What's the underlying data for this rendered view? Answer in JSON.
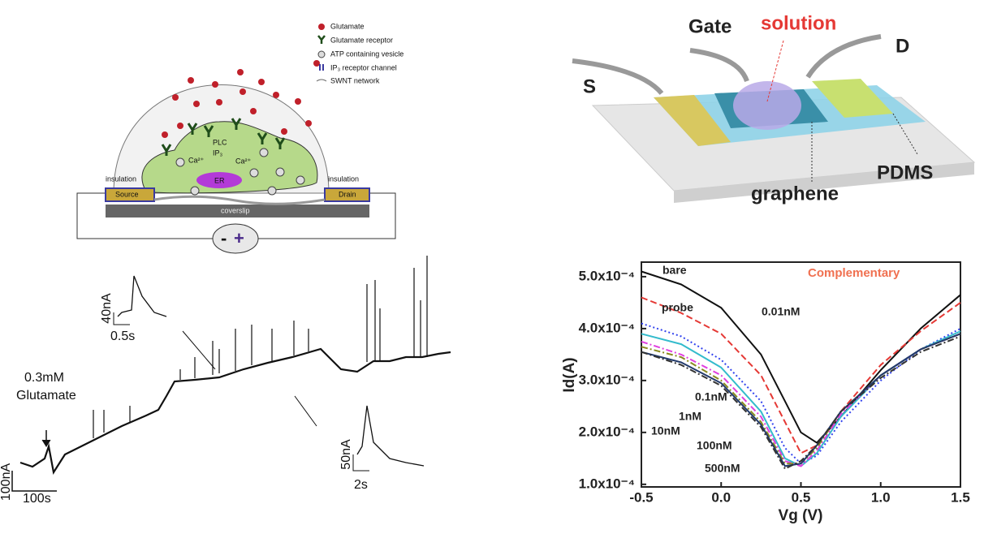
{
  "cell_diagram": {
    "legend": [
      "Glutamate",
      "Glutamate receptor",
      "ATP containing vesicle",
      "IP₃ receptor channel",
      "SWNT network"
    ],
    "labels": {
      "plc": "PLC",
      "ip3": "IP₃",
      "ca_left": "Ca²⁺",
      "ca_right": "Ca²⁺",
      "er": "ER",
      "insulation_left": "insulation",
      "insulation_right": "insulation",
      "source": "Source",
      "drain": "Drain",
      "coverslip": "coverslip",
      "minus": "-",
      "plus": "+"
    }
  },
  "trace": {
    "stimulus": "0.3mM",
    "stimulus_name": "Glutamate",
    "scale_y": "100nA",
    "scale_x": "100s",
    "inset1_y": "40nA",
    "inset1_x": "0.5s",
    "inset2_y": "50nA",
    "inset2_x": "2s"
  },
  "device": {
    "gate": "Gate",
    "solution": "solution",
    "drain": "D",
    "source": "S",
    "pdms": "PDMS",
    "graphene": "graphene"
  },
  "chart_data": {
    "type": "line",
    "annotation": "Complementary",
    "xlabel": "Vg (V)",
    "ylabel": "Id(A)",
    "x": [
      -0.5,
      -0.25,
      0,
      0.25,
      0.4,
      0.5,
      0.6,
      0.75,
      1.0,
      1.25,
      1.5
    ],
    "xlim": [
      -0.5,
      1.5
    ],
    "ylim": [
      9.5e-05,
      0.000528
    ],
    "xticks": [
      -0.5,
      {
        "value": 0,
        "label": "0.0"
      },
      0.5,
      {
        "value": 1,
        "label": "1.0"
      },
      1.5
    ],
    "yticks": [
      {
        "value": 0.0005,
        "label": "5.0x10⁻⁴"
      },
      {
        "value": 0.0004,
        "label": "4.0x10⁻⁴"
      },
      {
        "value": 0.0003,
        "label": "3.0x10⁻⁴"
      },
      {
        "value": 0.0002,
        "label": "2.0x10⁻⁴"
      },
      {
        "value": 0.0001,
        "label": "1.0x10⁻⁴"
      }
    ],
    "series": [
      {
        "name": "bare",
        "color": "#111111",
        "style": "solid",
        "values": [
          0.00051,
          0.000485,
          0.00044,
          0.00035,
          0.00026,
          0.0002,
          0.00018,
          0.00023,
          0.00032,
          0.0004,
          0.000465
        ]
      },
      {
        "name": "probe",
        "color": "#e53935",
        "style": "dashed",
        "values": [
          0.00046,
          0.00043,
          0.00039,
          0.00031,
          0.00022,
          0.00016,
          0.000175,
          0.00024,
          0.00033,
          0.000395,
          0.00045
        ]
      },
      {
        "name": "0.01nM",
        "color": "#3344ee",
        "style": "dotted",
        "values": [
          0.00041,
          0.000385,
          0.00034,
          0.00026,
          0.00017,
          0.00014,
          0.000155,
          0.00022,
          0.0003,
          0.00036,
          0.0004
        ]
      },
      {
        "name": "0.1nM",
        "color": "#33bbcc",
        "style": "solid",
        "values": [
          0.00039,
          0.00037,
          0.000325,
          0.00024,
          0.00015,
          0.000135,
          0.00016,
          0.00023,
          0.00031,
          0.00036,
          0.000395
        ]
      },
      {
        "name": "1nM",
        "color": "#e040e0",
        "style": "dashdot",
        "values": [
          0.000375,
          0.00035,
          0.00031,
          0.00023,
          0.000145,
          0.000135,
          0.000165,
          0.000235,
          0.00031,
          0.00036,
          0.00039
        ]
      },
      {
        "name": "10nM",
        "color": "#8a8a20",
        "style": "dashdot",
        "values": [
          0.000365,
          0.000345,
          0.0003,
          0.00022,
          0.00014,
          0.00014,
          0.00017,
          0.00024,
          0.00031,
          0.00036,
          0.00039
        ]
      },
      {
        "name": "100nM",
        "color": "#223a6a",
        "style": "solid",
        "values": [
          0.000355,
          0.000335,
          0.000295,
          0.000215,
          0.000135,
          0.00014,
          0.000175,
          0.00024,
          0.00031,
          0.00036,
          0.00039
        ]
      },
      {
        "name": "500nM",
        "color": "#333333",
        "style": "dashdot",
        "values": [
          0.000355,
          0.00033,
          0.00029,
          0.00021,
          0.00013,
          0.000145,
          0.000175,
          0.00024,
          0.000305,
          0.000355,
          0.000385
        ]
      }
    ]
  }
}
